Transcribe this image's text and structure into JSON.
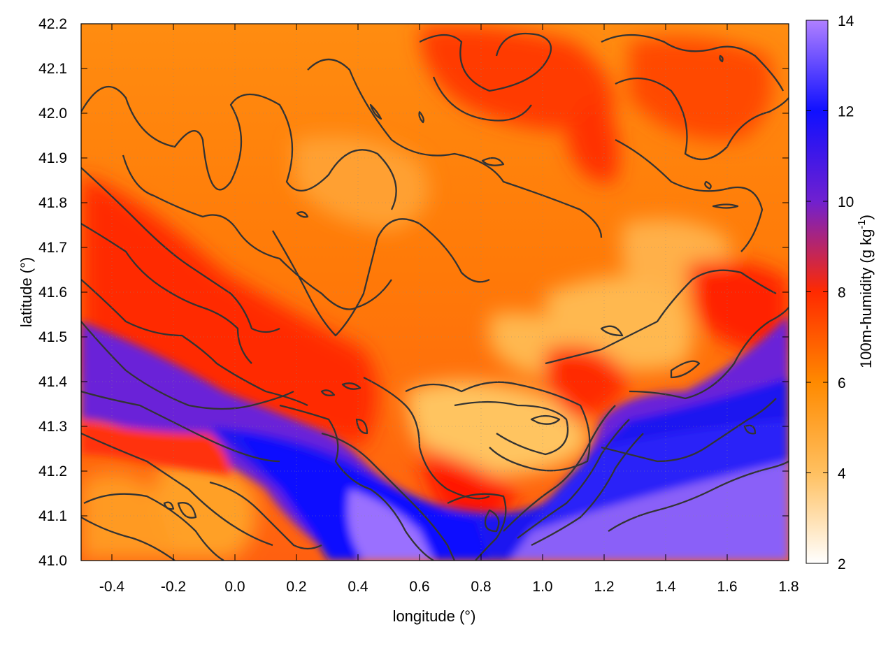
{
  "chart_data": {
    "type": "heatmap",
    "xlabel": "longitude (°)",
    "ylabel": "latitude (°)",
    "xlim": [
      -0.5,
      1.8
    ],
    "ylim": [
      41.0,
      42.2
    ],
    "x_ticks": [
      -0.4,
      -0.2,
      0.0,
      0.2,
      0.4,
      0.6,
      0.8,
      1.0,
      1.2,
      1.4,
      1.6,
      1.8
    ],
    "x_tick_labels": [
      "-0.4",
      "-0.2",
      "0.0",
      "0.2",
      "0.4",
      "0.6",
      "0.8",
      "1.0",
      "1.2",
      "1.4",
      "1.6",
      "1.8"
    ],
    "y_ticks": [
      41.0,
      41.1,
      41.2,
      41.3,
      41.4,
      41.5,
      41.6,
      41.7,
      41.8,
      41.9,
      42.0,
      42.1,
      42.2
    ],
    "y_tick_labels": [
      "41.0",
      "41.1",
      "41.2",
      "41.3",
      "41.4",
      "41.5",
      "41.6",
      "41.7",
      "41.8",
      "41.9",
      "42.0",
      "42.1",
      "42.2"
    ],
    "grid": true,
    "colorbar": {
      "label": "100m-humidity (g kg⁻¹)",
      "label_main": "100m-humidity (g kg",
      "label_sup": "-1",
      "label_close": ")",
      "range": [
        2,
        14
      ],
      "ticks": [
        2,
        4,
        6,
        8,
        10,
        12,
        14
      ],
      "tick_labels": [
        "2",
        "4",
        "6",
        "8",
        "10",
        "12",
        "14"
      ],
      "colors": [
        "#ffffff",
        "#ffc060",
        "#ff8a00",
        "#ff2a00",
        "#7020d0",
        "#1010ff",
        "#b080ff"
      ]
    },
    "overlay": "contour lines"
  }
}
